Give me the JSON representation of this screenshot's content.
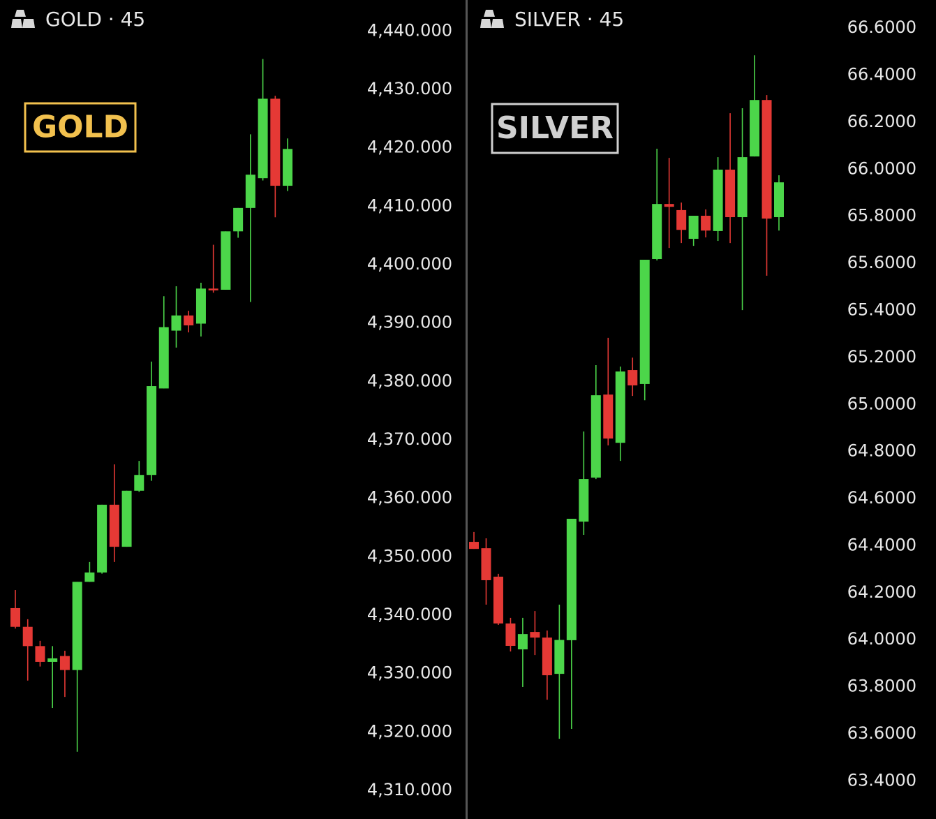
{
  "chart_data": [
    {
      "type": "candlestick",
      "title": "GOLD · 45",
      "annotation": "GOLD",
      "annotation_color": "#f2c14e",
      "up_color": "#4cd64a",
      "down_color": "#e53935",
      "open": [
        4341.2,
        4338.0,
        4334.7,
        4332.0,
        4333.0,
        4330.6,
        4345.7,
        4347.3,
        4358.9,
        4351.7,
        4361.3,
        4364.0,
        4378.8,
        4388.7,
        4391.3,
        4389.9,
        4395.9,
        4395.7,
        4405.7,
        4409.7,
        4414.8,
        4428.4,
        4413.5
      ],
      "high": [
        4344.3,
        4339.3,
        4335.6,
        4334.7,
        4333.9,
        4345.7,
        4349.1,
        4358.9,
        4365.8,
        4361.3,
        4366.4,
        4383.4,
        4394.6,
        4396.3,
        4392.1,
        4396.9,
        4403.4,
        4405.7,
        4409.7,
        4422.3,
        4435.2,
        4428.9,
        4421.6
      ],
      "low": [
        4337.7,
        4328.8,
        4331.2,
        4324.1,
        4326.0,
        4316.6,
        4345.7,
        4347.1,
        4349.1,
        4351.7,
        4361.1,
        4363.0,
        4378.8,
        4385.8,
        4388.4,
        4387.7,
        4395.2,
        4395.7,
        4404.6,
        4393.6,
        4414.4,
        4408.1,
        4412.6
      ],
      "close": [
        4338.0,
        4334.7,
        4332.0,
        4332.6,
        4330.6,
        4345.7,
        4347.3,
        4358.9,
        4351.7,
        4361.3,
        4364.0,
        4379.2,
        4389.3,
        4391.3,
        4389.6,
        4395.9,
        4395.6,
        4405.7,
        4409.7,
        4415.4,
        4428.4,
        4413.5,
        4419.8
      ],
      "ylim": [
        4305.1,
        4445.3
      ],
      "yticks": [
        {
          "value": 4440,
          "label": "4,440.000"
        },
        {
          "value": 4430,
          "label": "4,430.000"
        },
        {
          "value": 4420,
          "label": "4,420.000"
        },
        {
          "value": 4410,
          "label": "4,410.000"
        },
        {
          "value": 4400,
          "label": "4,400.000"
        },
        {
          "value": 4390,
          "label": "4,390.000"
        },
        {
          "value": 4380,
          "label": "4,380.000"
        },
        {
          "value": 4370,
          "label": "4,370.000"
        },
        {
          "value": 4360,
          "label": "4,360.000"
        },
        {
          "value": 4350,
          "label": "4,350.000"
        },
        {
          "value": 4340,
          "label": "4,340.000"
        },
        {
          "value": 4330,
          "label": "4,330.000"
        },
        {
          "value": 4320,
          "label": "4,320.000"
        },
        {
          "value": 4310,
          "label": "4,310.000"
        }
      ]
    },
    {
      "type": "candlestick",
      "title": "SILVER · 45",
      "annotation": "SILVER",
      "annotation_color": "#cfcfcf",
      "up_color": "#4cd64a",
      "down_color": "#e53935",
      "open": [
        64.416,
        64.389,
        64.268,
        64.069,
        63.959,
        64.033,
        64.009,
        63.855,
        63.998,
        64.502,
        64.689,
        65.042,
        64.837,
        65.146,
        65.087,
        65.618,
        65.852,
        65.826,
        65.704,
        65.802,
        65.737,
        65.998,
        65.796,
        66.054,
        66.294,
        65.796
      ],
      "high": [
        64.458,
        64.431,
        64.28,
        64.093,
        64.093,
        64.122,
        64.039,
        64.149,
        64.514,
        64.885,
        65.167,
        65.283,
        65.161,
        65.199,
        65.615,
        66.087,
        66.048,
        65.858,
        65.802,
        65.829,
        66.051,
        66.238,
        66.259,
        66.484,
        66.315,
        65.974
      ],
      "low": [
        64.386,
        64.149,
        64.063,
        63.95,
        63.799,
        63.935,
        63.745,
        63.579,
        63.621,
        64.446,
        64.683,
        64.826,
        64.76,
        65.036,
        65.018,
        65.612,
        65.665,
        65.686,
        65.674,
        65.71,
        65.695,
        65.686,
        65.401,
        66.054,
        65.547,
        65.739
      ],
      "close": [
        64.386,
        64.253,
        64.069,
        63.974,
        64.024,
        64.009,
        63.849,
        63.999,
        64.514,
        64.683,
        65.039,
        64.855,
        65.14,
        65.081,
        65.615,
        65.852,
        65.84,
        65.742,
        65.802,
        65.739,
        65.998,
        65.796,
        66.051,
        66.294,
        65.79,
        65.944
      ],
      "ylim": [
        63.238,
        66.719
      ],
      "yticks": [
        {
          "value": 66.6,
          "label": "66.6000"
        },
        {
          "value": 66.4,
          "label": "66.4000"
        },
        {
          "value": 66.2,
          "label": "66.2000"
        },
        {
          "value": 66.0,
          "label": "66.0000"
        },
        {
          "value": 65.8,
          "label": "65.8000"
        },
        {
          "value": 65.6,
          "label": "65.6000"
        },
        {
          "value": 65.4,
          "label": "65.4000"
        },
        {
          "value": 65.2,
          "label": "65.2000"
        },
        {
          "value": 65.0,
          "label": "65.0000"
        },
        {
          "value": 64.8,
          "label": "64.8000"
        },
        {
          "value": 64.6,
          "label": "64.6000"
        },
        {
          "value": 64.4,
          "label": "64.4000"
        },
        {
          "value": 64.2,
          "label": "64.2000"
        },
        {
          "value": 64.0,
          "label": "64.0000"
        },
        {
          "value": 63.8,
          "label": "63.8000"
        },
        {
          "value": 63.6,
          "label": "63.6000"
        },
        {
          "value": 63.4,
          "label": "63.4000"
        }
      ]
    }
  ]
}
